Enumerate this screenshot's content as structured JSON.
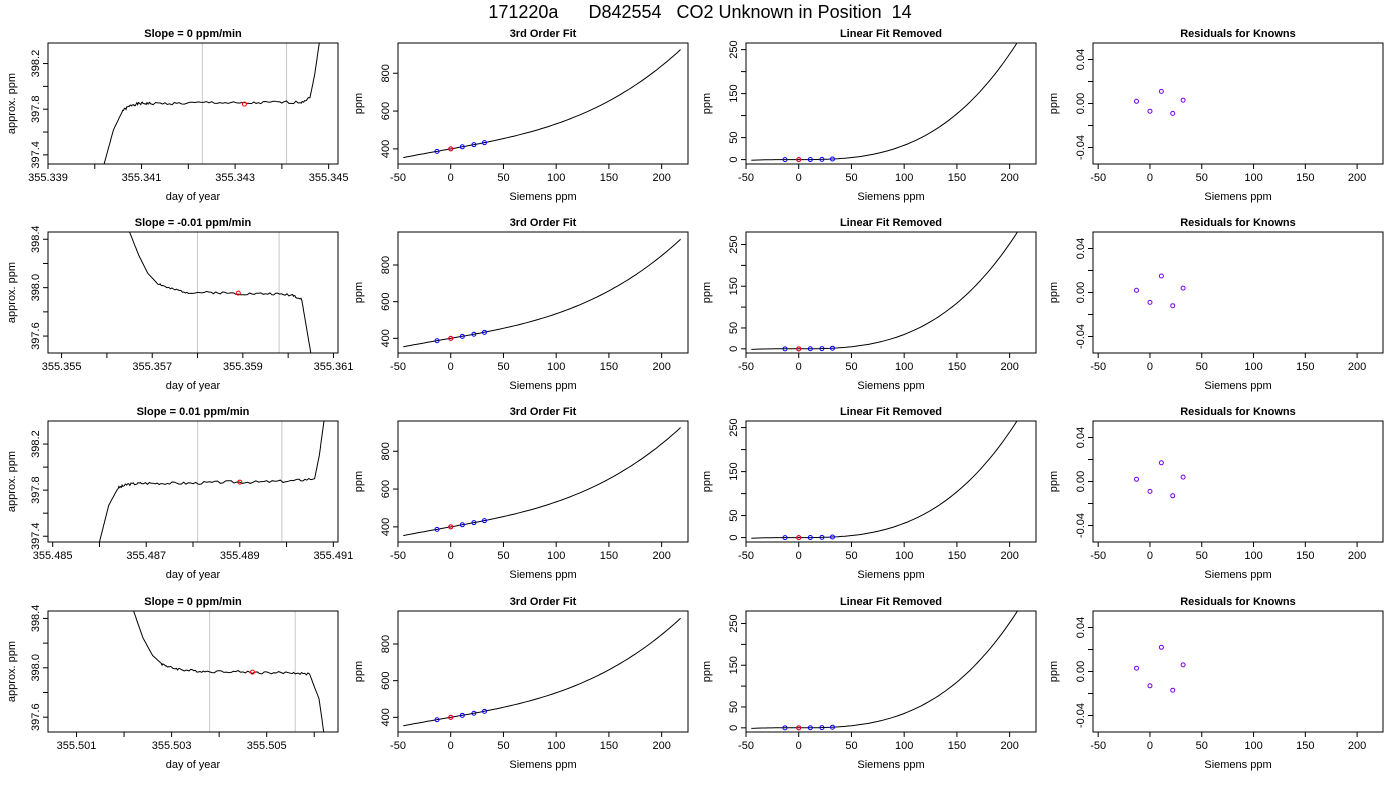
{
  "page_title": "171220a      D842554   CO2 Unknown in Position  14",
  "colors": {
    "axis": "#000000",
    "curve": "#000000",
    "window_lines": "#c8c8c8",
    "marker_known": "#0000ff",
    "marker_unknown": "#ff0000",
    "residual_marker": "#7700ee"
  },
  "chart_data": [
    {
      "type": "line",
      "row": 1,
      "panel": "raw_trace",
      "title": "Slope =  0  ppm/min",
      "xlabel": "day of year",
      "ylabel": "approx. ppm",
      "xlim": [
        355.339,
        355.3452
      ],
      "ylim": [
        397.32,
        398.38
      ],
      "xticks": [
        355.339,
        355.34,
        355.341,
        355.342,
        355.343,
        355.344,
        355.345
      ],
      "xtick_labels": [
        "355.339",
        "",
        "355.341",
        "",
        "355.343",
        "",
        "355.345"
      ],
      "yticks": [
        397.4,
        397.6,
        397.8,
        398.0,
        398.2
      ],
      "ytick_labels": [
        "397.4",
        "",
        "397.8",
        "",
        "398.2"
      ],
      "trace": {
        "x": [
          355.3402,
          355.3404,
          355.3406,
          355.3408,
          355.341,
          355.3412,
          355.3418,
          355.3425,
          355.3432,
          355.3438,
          355.3444,
          355.3446,
          355.3447,
          355.3448
        ],
        "y": [
          397.32,
          397.62,
          397.79,
          397.84,
          397.85,
          397.85,
          397.85,
          397.86,
          397.85,
          397.86,
          397.86,
          397.9,
          398.1,
          398.38
        ],
        "noise": 0.012,
        "seed": 1
      },
      "window_x": [
        355.3423,
        355.3441
      ],
      "point": {
        "x": 355.3432,
        "y": 397.845
      }
    },
    {
      "type": "line",
      "row": 1,
      "panel": "cubic_fit",
      "title": "3rd Order Fit",
      "xlabel": "Siemens ppm",
      "ylabel": "ppm",
      "xlim": [
        -50,
        225
      ],
      "ylim": [
        320,
        960
      ],
      "xticks": [
        -50,
        0,
        50,
        100,
        150,
        200
      ],
      "yticks": [
        400,
        600,
        800
      ],
      "curve": {
        "from": -45,
        "to": 218,
        "coef": [
          400,
          0.995,
          0.0005,
          2.75e-05
        ]
      },
      "known_points": [
        {
          "x": -13,
          "y": 386.6
        },
        {
          "x": 0,
          "y": 400
        },
        {
          "x": 11,
          "y": 411.0
        },
        {
          "x": 22,
          "y": 422.2
        },
        {
          "x": 32,
          "y": 432.8
        }
      ],
      "unknown_point": {
        "x": 0,
        "y": 400
      }
    },
    {
      "type": "line",
      "row": 1,
      "panel": "linear_removed",
      "title": "Linear Fit Removed",
      "xlabel": "Siemens ppm",
      "ylabel": "ppm",
      "xlim": [
        -50,
        225
      ],
      "ylim": [
        -10,
        265
      ],
      "xticks": [
        -50,
        0,
        50,
        100,
        150,
        200
      ],
      "yticks": [
        0,
        50,
        100,
        150,
        200,
        250
      ],
      "ytick_labels": [
        "0",
        "50",
        "",
        "150",
        "",
        "250"
      ],
      "curve": {
        "from": -45,
        "to": 218,
        "coef": [
          0,
          0,
          0.0005,
          2.75e-05
        ]
      },
      "known_points": [
        {
          "x": -13,
          "y": 0.03
        },
        {
          "x": 0,
          "y": 0
        },
        {
          "x": 11,
          "y": 0.1
        },
        {
          "x": 22,
          "y": 0.5
        },
        {
          "x": 32,
          "y": 1.4
        }
      ],
      "unknown_point": {
        "x": 0,
        "y": 0
      }
    },
    {
      "type": "scatter",
      "row": 1,
      "panel": "residuals",
      "title": "Residuals for Knowns",
      "xlabel": "Siemens ppm",
      "ylabel": "ppm",
      "xlim": [
        -55,
        225
      ],
      "ylim": [
        -0.055,
        0.055
      ],
      "xticks": [
        -50,
        0,
        50,
        100,
        150,
        200
      ],
      "yticks": [
        -0.04,
        -0.02,
        0,
        0.02,
        0.04
      ],
      "ytick_labels": [
        "-0.04",
        "",
        "0.00",
        "",
        "0.04"
      ],
      "points": [
        {
          "x": -13,
          "y": 0.002
        },
        {
          "x": 0,
          "y": -0.007
        },
        {
          "x": 11,
          "y": 0.011
        },
        {
          "x": 22,
          "y": -0.009
        },
        {
          "x": 32,
          "y": 0.003
        }
      ]
    },
    {
      "type": "line",
      "row": 2,
      "panel": "raw_trace",
      "title": "Slope =  -0.01  ppm/min",
      "xlabel": "day of year",
      "ylabel": "approx. ppm",
      "xlim": [
        355.3547,
        355.3611
      ],
      "ylim": [
        397.46,
        398.46
      ],
      "xticks": [
        355.355,
        355.356,
        355.357,
        355.358,
        355.359,
        355.36,
        355.361
      ],
      "xtick_labels": [
        "355.355",
        "",
        "355.357",
        "",
        "355.359",
        "",
        "355.361"
      ],
      "yticks": [
        397.6,
        397.8,
        398.0,
        398.2,
        398.4
      ],
      "ytick_labels": [
        "397.6",
        "",
        "398.0",
        "",
        "398.4"
      ],
      "trace": {
        "x": [
          355.3565,
          355.3567,
          355.3569,
          355.3571,
          355.3574,
          355.3578,
          355.3584,
          355.359,
          355.3596,
          355.3601,
          355.3603,
          355.3604,
          355.3605
        ],
        "y": [
          398.46,
          398.27,
          398.12,
          398.04,
          397.99,
          397.96,
          397.96,
          397.95,
          397.95,
          397.94,
          397.9,
          397.68,
          397.46
        ],
        "noise": 0.01,
        "seed": 2
      },
      "window_x": [
        355.358,
        355.3598
      ],
      "point": {
        "x": 355.3589,
        "y": 397.955
      }
    },
    {
      "type": "line",
      "row": 2,
      "panel": "cubic_fit",
      "title": "3rd Order Fit",
      "xlabel": "Siemens ppm",
      "ylabel": "ppm",
      "xlim": [
        -50,
        225
      ],
      "ylim": [
        320,
        980
      ],
      "xticks": [
        -50,
        0,
        50,
        100,
        150,
        200
      ],
      "yticks": [
        400,
        600,
        800
      ],
      "curve": {
        "from": -45,
        "to": 218,
        "coef": [
          400,
          0.995,
          0.0006,
          2.85e-05
        ]
      },
      "known_points": [
        {
          "x": -13,
          "y": 386.6
        },
        {
          "x": 0,
          "y": 400
        },
        {
          "x": 11,
          "y": 411.0
        },
        {
          "x": 22,
          "y": 422.2
        },
        {
          "x": 32,
          "y": 432.8
        }
      ],
      "unknown_point": {
        "x": 0,
        "y": 400
      }
    },
    {
      "type": "line",
      "row": 2,
      "panel": "linear_removed",
      "title": "Linear Fit Removed",
      "xlabel": "Siemens ppm",
      "ylabel": "ppm",
      "xlim": [
        -50,
        225
      ],
      "ylim": [
        -10,
        280
      ],
      "xticks": [
        -50,
        0,
        50,
        100,
        150,
        200
      ],
      "yticks": [
        0,
        50,
        100,
        150,
        200,
        250
      ],
      "ytick_labels": [
        "0",
        "50",
        "",
        "150",
        "",
        "250"
      ],
      "curve": {
        "from": -45,
        "to": 218,
        "coef": [
          0,
          0,
          0.0006,
          2.85e-05
        ]
      },
      "known_points": [
        {
          "x": -13,
          "y": 0.03
        },
        {
          "x": 0,
          "y": 0
        },
        {
          "x": 11,
          "y": 0.1
        },
        {
          "x": 22,
          "y": 0.6
        },
        {
          "x": 32,
          "y": 1.5
        }
      ],
      "unknown_point": {
        "x": 0,
        "y": 0
      }
    },
    {
      "type": "scatter",
      "row": 2,
      "panel": "residuals",
      "title": "Residuals for Knowns",
      "xlabel": "Siemens ppm",
      "ylabel": "ppm",
      "xlim": [
        -55,
        225
      ],
      "ylim": [
        -0.055,
        0.055
      ],
      "xticks": [
        -50,
        0,
        50,
        100,
        150,
        200
      ],
      "yticks": [
        -0.04,
        -0.02,
        0,
        0.02,
        0.04
      ],
      "ytick_labels": [
        "-0.04",
        "",
        "0.00",
        "",
        "0.04"
      ],
      "points": [
        {
          "x": -13,
          "y": 0.002
        },
        {
          "x": 0,
          "y": -0.009
        },
        {
          "x": 11,
          "y": 0.015
        },
        {
          "x": 22,
          "y": -0.012
        },
        {
          "x": 32,
          "y": 0.004
        }
      ]
    },
    {
      "type": "line",
      "row": 3,
      "panel": "raw_trace",
      "title": "Slope =  0.01  ppm/min",
      "xlabel": "day of year",
      "ylabel": "approx. ppm",
      "xlim": [
        355.4849,
        355.4911
      ],
      "ylim": [
        397.35,
        398.4
      ],
      "xticks": [
        355.485,
        355.486,
        355.487,
        355.488,
        355.489,
        355.49,
        355.491
      ],
      "xtick_labels": [
        "355.485",
        "",
        "355.487",
        "",
        "355.489",
        "",
        "355.491"
      ],
      "yticks": [
        397.4,
        397.6,
        397.8,
        398.0,
        398.2
      ],
      "ytick_labels": [
        "397.4",
        "",
        "397.8",
        "",
        "398.2"
      ],
      "trace": {
        "x": [
          355.486,
          355.4862,
          355.4864,
          355.4866,
          355.4869,
          355.4874,
          355.488,
          355.4887,
          355.4894,
          355.4901,
          355.4906,
          355.4907,
          355.4908
        ],
        "y": [
          397.35,
          397.67,
          397.82,
          397.85,
          397.86,
          397.86,
          397.86,
          397.87,
          397.87,
          397.88,
          397.9,
          398.1,
          398.4
        ],
        "noise": 0.012,
        "seed": 3
      },
      "window_x": [
        355.4881,
        355.4899
      ],
      "point": {
        "x": 355.489,
        "y": 397.87
      }
    },
    {
      "type": "line",
      "row": 3,
      "panel": "cubic_fit",
      "title": "3rd Order Fit",
      "xlabel": "Siemens ppm",
      "ylabel": "ppm",
      "xlim": [
        -50,
        225
      ],
      "ylim": [
        320,
        960
      ],
      "xticks": [
        -50,
        0,
        50,
        100,
        150,
        200
      ],
      "yticks": [
        400,
        600,
        800
      ],
      "curve": {
        "from": -45,
        "to": 218,
        "coef": [
          400,
          0.995,
          0.0005,
          2.75e-05
        ]
      },
      "known_points": [
        {
          "x": -13,
          "y": 386.6
        },
        {
          "x": 0,
          "y": 400
        },
        {
          "x": 11,
          "y": 411.0
        },
        {
          "x": 22,
          "y": 422.2
        },
        {
          "x": 32,
          "y": 432.8
        }
      ],
      "unknown_point": {
        "x": 0,
        "y": 400
      }
    },
    {
      "type": "line",
      "row": 3,
      "panel": "linear_removed",
      "title": "Linear Fit Removed",
      "xlabel": "Siemens ppm",
      "ylabel": "ppm",
      "xlim": [
        -50,
        225
      ],
      "ylim": [
        -10,
        265
      ],
      "xticks": [
        -50,
        0,
        50,
        100,
        150,
        200
      ],
      "yticks": [
        0,
        50,
        100,
        150,
        200,
        250
      ],
      "ytick_labels": [
        "0",
        "50",
        "",
        "150",
        "",
        "250"
      ],
      "curve": {
        "from": -45,
        "to": 218,
        "coef": [
          0,
          0,
          0.0005,
          2.75e-05
        ]
      },
      "known_points": [
        {
          "x": -13,
          "y": 0.03
        },
        {
          "x": 0,
          "y": 0
        },
        {
          "x": 11,
          "y": 0.1
        },
        {
          "x": 22,
          "y": 0.5
        },
        {
          "x": 32,
          "y": 1.4
        }
      ],
      "unknown_point": {
        "x": 0,
        "y": 0
      }
    },
    {
      "type": "scatter",
      "row": 3,
      "panel": "residuals",
      "title": "Residuals for Knowns",
      "xlabel": "Siemens ppm",
      "ylabel": "ppm",
      "xlim": [
        -55,
        225
      ],
      "ylim": [
        -0.055,
        0.055
      ],
      "xticks": [
        -50,
        0,
        50,
        100,
        150,
        200
      ],
      "yticks": [
        -0.04,
        -0.02,
        0,
        0.02,
        0.04
      ],
      "ytick_labels": [
        "-0.04",
        "",
        "0.00",
        "",
        "0.04"
      ],
      "points": [
        {
          "x": -13,
          "y": 0.002
        },
        {
          "x": 0,
          "y": -0.009
        },
        {
          "x": 11,
          "y": 0.017
        },
        {
          "x": 22,
          "y": -0.013
        },
        {
          "x": 32,
          "y": 0.004
        }
      ]
    },
    {
      "type": "line",
      "row": 4,
      "panel": "raw_trace",
      "title": "Slope =  0  ppm/min",
      "xlabel": "day of year",
      "ylabel": "approx. ppm",
      "xlim": [
        355.5004,
        355.5065
      ],
      "ylim": [
        397.48,
        398.46
      ],
      "xticks": [
        355.501,
        355.502,
        355.503,
        355.504,
        355.505,
        355.506
      ],
      "xtick_labels": [
        "355.501",
        "",
        "355.503",
        "",
        "355.505",
        ""
      ],
      "yticks": [
        397.6,
        397.8,
        398.0,
        398.2,
        398.4
      ],
      "ytick_labels": [
        "397.6",
        "",
        "398.0",
        "",
        "398.4"
      ],
      "trace": {
        "x": [
          355.5022,
          355.5024,
          355.5026,
          355.5028,
          355.503,
          355.5033,
          355.5037,
          355.5043,
          355.5049,
          355.5055,
          355.5059,
          355.5061,
          355.5062
        ],
        "y": [
          398.46,
          398.24,
          398.1,
          398.03,
          398.0,
          397.98,
          397.97,
          397.97,
          397.96,
          397.96,
          397.95,
          397.75,
          397.48
        ],
        "noise": 0.01,
        "seed": 4
      },
      "window_x": [
        355.5038,
        355.5056
      ],
      "point": {
        "x": 355.5047,
        "y": 397.965
      }
    },
    {
      "type": "line",
      "row": 4,
      "panel": "cubic_fit",
      "title": "3rd Order Fit",
      "xlabel": "Siemens ppm",
      "ylabel": "ppm",
      "xlim": [
        -50,
        225
      ],
      "ylim": [
        320,
        980
      ],
      "xticks": [
        -50,
        0,
        50,
        100,
        150,
        200
      ],
      "yticks": [
        400,
        600,
        800
      ],
      "curve": {
        "from": -45,
        "to": 218,
        "coef": [
          400,
          0.995,
          0.0006,
          2.85e-05
        ]
      },
      "known_points": [
        {
          "x": -13,
          "y": 386.6
        },
        {
          "x": 0,
          "y": 400
        },
        {
          "x": 11,
          "y": 411.0
        },
        {
          "x": 22,
          "y": 422.2
        },
        {
          "x": 32,
          "y": 432.8
        }
      ],
      "unknown_point": {
        "x": 0,
        "y": 400
      }
    },
    {
      "type": "line",
      "row": 4,
      "panel": "linear_removed",
      "title": "Linear Fit Removed",
      "xlabel": "Siemens ppm",
      "ylabel": "ppm",
      "xlim": [
        -50,
        225
      ],
      "ylim": [
        -10,
        280
      ],
      "xticks": [
        -50,
        0,
        50,
        100,
        150,
        200
      ],
      "yticks": [
        0,
        50,
        100,
        150,
        200,
        250
      ],
      "ytick_labels": [
        "0",
        "50",
        "",
        "150",
        "",
        "250"
      ],
      "curve": {
        "from": -45,
        "to": 218,
        "coef": [
          0,
          0,
          0.0006,
          2.85e-05
        ]
      },
      "known_points": [
        {
          "x": -13,
          "y": 0.03
        },
        {
          "x": 0,
          "y": 0
        },
        {
          "x": 11,
          "y": 0.1
        },
        {
          "x": 22,
          "y": 0.6
        },
        {
          "x": 32,
          "y": 1.5
        }
      ],
      "unknown_point": {
        "x": 0,
        "y": 0
      }
    },
    {
      "type": "scatter",
      "row": 4,
      "panel": "residuals",
      "title": "Residuals for Knowns",
      "xlabel": "Siemens ppm",
      "ylabel": "ppm",
      "xlim": [
        -55,
        225
      ],
      "ylim": [
        -0.055,
        0.055
      ],
      "xticks": [
        -50,
        0,
        50,
        100,
        150,
        200
      ],
      "yticks": [
        -0.04,
        -0.02,
        0,
        0.02,
        0.04
      ],
      "ytick_labels": [
        "-0.04",
        "",
        "0.00",
        "",
        "0.04"
      ],
      "points": [
        {
          "x": -13,
          "y": 0.003
        },
        {
          "x": 0,
          "y": -0.013
        },
        {
          "x": 11,
          "y": 0.022
        },
        {
          "x": 22,
          "y": -0.017
        },
        {
          "x": 32,
          "y": 0.006
        }
      ]
    }
  ]
}
